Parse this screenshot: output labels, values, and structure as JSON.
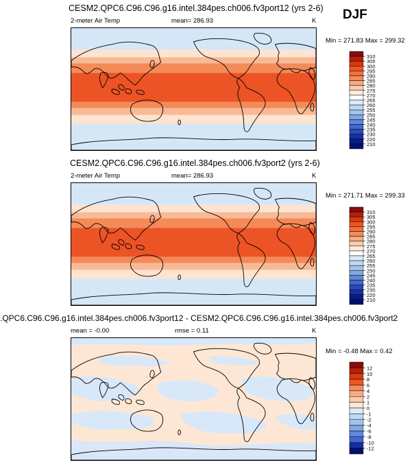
{
  "season_label": "DJF",
  "panels": [
    {
      "title": "CESM2.QPC6.C96.C96.g16.intel.384pes.ch006.fv3port12 (yrs 2-6)",
      "left_label": "2-meter Air Temp",
      "mean_label": "mean= 286.93",
      "units": "K",
      "minmax": "Min = 271.83 Max = 299.32",
      "colorbar": {
        "ticks": [
          "310",
          "305",
          "300",
          "295",
          "290",
          "285",
          "280",
          "275",
          "270",
          "265",
          "260",
          "255",
          "250",
          "245",
          "240",
          "235",
          "230",
          "220",
          "210"
        ],
        "colors": [
          "#8a0b0b",
          "#b3200e",
          "#d9380c",
          "#ee5624",
          "#f46f3c",
          "#f58b5c",
          "#f8ab82",
          "#fbcbae",
          "#fdebdc",
          "#ffffff",
          "#dcebfa",
          "#c0d9f3",
          "#a2c3ec",
          "#80a8e3",
          "#5f88da",
          "#4268cf",
          "#2a49bd",
          "#1530a3",
          "#061d86",
          "#021070"
        ]
      },
      "bands_top_to_bottom": [
        "#d5e7f7",
        "#fde3d0",
        "#f8b996",
        "#f48a58",
        "#ec5325",
        "#f48a58",
        "#f8b996",
        "#fde3d0",
        "#d5e7f7"
      ]
    },
    {
      "title": "CESM2.QPC6.C96.C96.g16.intel.384pes.ch006.fv3port2 (yrs 2-6)",
      "left_label": "2-meter Air Temp",
      "mean_label": "mean= 286.93",
      "units": "K",
      "minmax": "Min = 271.71 Max = 299.33",
      "colorbar": {
        "ticks": [
          "310",
          "305",
          "300",
          "295",
          "290",
          "285",
          "280",
          "275",
          "270",
          "265",
          "260",
          "255",
          "250",
          "245",
          "240",
          "235",
          "230",
          "220",
          "210"
        ],
        "colors": [
          "#8a0b0b",
          "#b3200e",
          "#d9380c",
          "#ee5624",
          "#f46f3c",
          "#f58b5c",
          "#f8ab82",
          "#fbcbae",
          "#fdebdc",
          "#ffffff",
          "#dcebfa",
          "#c0d9f3",
          "#a2c3ec",
          "#80a8e3",
          "#5f88da",
          "#4268cf",
          "#2a49bd",
          "#1530a3",
          "#061d86",
          "#021070"
        ]
      },
      "bands_top_to_bottom": [
        "#d5e7f7",
        "#fde3d0",
        "#f8b996",
        "#f48a58",
        "#ec5325",
        "#f48a58",
        "#f8b996",
        "#fde3d0",
        "#d5e7f7"
      ]
    },
    {
      "title": ".QPC6.C96.C96.g16.intel.384pes.ch006.fv3port12 - CESM2.QPC6.C96.C96.g16.intel.384pes.ch006.fv3port2",
      "mean_label": "mean = -0.00",
      "rmse_label": "rmse =  0.11",
      "units": "K",
      "minmax": "Min = -0.48 Max =  0.42",
      "colorbar": {
        "ticks": [
          "12",
          "10",
          "8",
          "6",
          "4",
          "2",
          "1",
          "0",
          "-1",
          "-2",
          "-4",
          "-6",
          "-8",
          "-10",
          "-12"
        ],
        "colors": [
          "#8a0b0b",
          "#b3200e",
          "#d9380c",
          "#ee5624",
          "#f58b5c",
          "#f8ab82",
          "#fbcbae",
          "#fde7d4",
          "#dcebfa",
          "#c0d9f3",
          "#a2c3ec",
          "#80a8e3",
          "#5f88da",
          "#4268cf",
          "#1530a3",
          "#021070"
        ]
      },
      "base_color": "#fde7d4",
      "cool_color": "#d8e8f8"
    }
  ]
}
